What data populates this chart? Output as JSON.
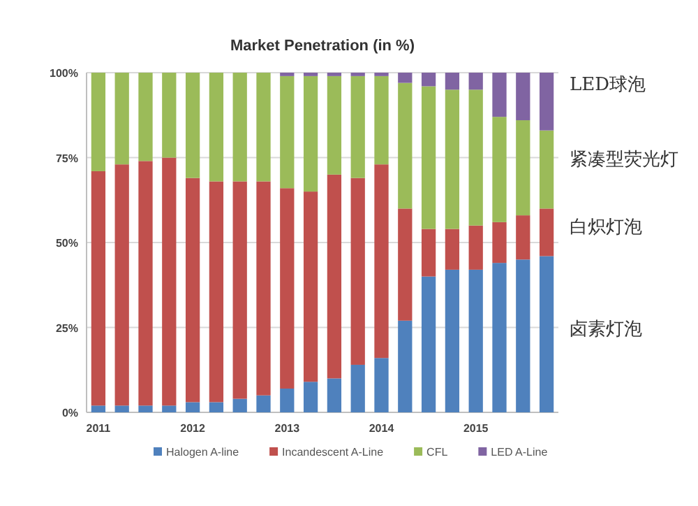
{
  "chart_data": {
    "type": "bar",
    "stacked": true,
    "title": "Market Penetration (in %)",
    "categories": [
      "2011",
      null,
      null,
      null,
      "2012",
      null,
      null,
      null,
      "2013",
      null,
      null,
      null,
      "2014",
      null,
      null,
      null,
      "2015",
      null,
      null,
      null
    ],
    "series": [
      {
        "name": "Halogen A-line",
        "color": "#4f81bd",
        "values": [
          2,
          2,
          2,
          2,
          3,
          3,
          4,
          5,
          7,
          9,
          10,
          14,
          16,
          27,
          40,
          42,
          42,
          44,
          45,
          46
        ]
      },
      {
        "name": "Incandescent A-Line",
        "color": "#c0504d",
        "values": [
          69,
          71,
          72,
          73,
          66,
          65,
          64,
          63,
          59,
          56,
          60,
          55,
          57,
          33,
          14,
          12,
          13,
          12,
          13,
          14
        ]
      },
      {
        "name": "CFL",
        "color": "#9bbb59",
        "values": [
          29,
          27,
          26,
          25,
          31,
          32,
          32,
          32,
          33,
          34,
          29,
          30,
          26,
          37,
          42,
          41,
          40,
          31,
          28,
          23
        ]
      },
      {
        "name": "LED A-Line",
        "color": "#8064a2",
        "values": [
          0,
          0,
          0,
          0,
          0,
          0,
          0,
          0,
          1,
          1,
          1,
          1,
          1,
          3,
          4,
          5,
          5,
          13,
          14,
          17
        ]
      }
    ],
    "ylim": [
      0,
      100
    ],
    "yticks": [
      {
        "value": 0,
        "label": "0%"
      },
      {
        "value": 25,
        "label": "25%"
      },
      {
        "value": 50,
        "label": "50%"
      },
      {
        "value": 75,
        "label": "75%"
      },
      {
        "value": 100,
        "label": "100%"
      }
    ],
    "grid": "y",
    "legend": "bottom",
    "annotations": [
      "LED球泡",
      "紧凑型荧光灯",
      "白炽灯泡",
      "卤素灯泡"
    ]
  }
}
